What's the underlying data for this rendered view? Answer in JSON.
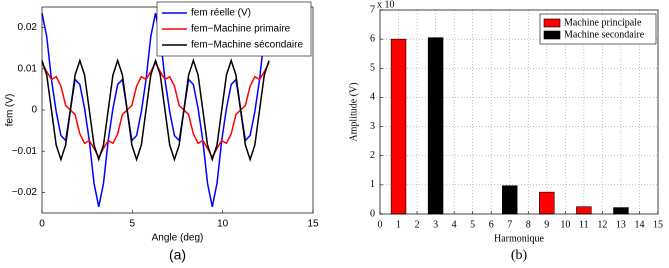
{
  "chart_data": [
    {
      "type": "line",
      "caption": "(a)",
      "xlabel": "Angle (deg)",
      "ylabel": "fem (V)",
      "xlim": [
        0,
        15
      ],
      "xticks": [
        0,
        5,
        10,
        15
      ],
      "ylim": [
        -0.025,
        0.025
      ],
      "yticks": [
        {
          "value": -0.02,
          "label": "−0.02"
        },
        {
          "value": -0.01,
          "label": "−0.01"
        },
        0,
        0.01,
        0.02
      ],
      "grid": false,
      "legend": "top-right",
      "x": [
        0,
        0.2618,
        0.5236,
        0.7854,
        1.0472,
        1.309,
        1.5708,
        1.8326,
        2.0944,
        2.3562,
        2.618,
        2.8798,
        3.1416,
        3.4034,
        3.6652,
        3.927,
        4.1888,
        4.4506,
        4.7124,
        4.9742,
        5.236,
        5.4978,
        5.7596,
        6.0214,
        6.2832,
        6.545,
        6.8068,
        7.0686,
        7.3304,
        7.5922,
        7.854,
        8.1158,
        8.3776,
        8.6394,
        8.9012,
        9.163,
        9.4248,
        9.6866,
        9.9484,
        10.2102,
        10.472,
        10.7338,
        10.9956,
        11.2574,
        11.5192,
        11.781,
        12.0428,
        12.3046,
        12.5664
      ],
      "series": [
        {
          "name": "fem réelle (V)",
          "color": "#0000ff",
          "values": [
            0.0235,
            0.0178,
            0.0074,
            -0.0004,
            -0.0062,
            -0.0074,
            0,
            0.0074,
            0.0062,
            0.0004,
            -0.0074,
            -0.0178,
            -0.0235,
            -0.0178,
            -0.0074,
            0.0004,
            0.0062,
            0.0074,
            0,
            -0.0074,
            -0.0062,
            -0.0004,
            0.0074,
            0.0178,
            0.0235,
            0.0178,
            0.0074,
            -0.0004,
            -0.0062,
            -0.0074,
            0,
            0.0074,
            0.0062,
            0.0004,
            -0.0074,
            -0.0178,
            -0.0235,
            -0.0178,
            -0.0074,
            0.0004,
            0.0062,
            0.0074,
            0,
            -0.0074,
            -0.0062,
            -0.0004,
            0.0074,
            0.0178,
            0.0235
          ]
        },
        {
          "name": "fem−Machine primaire",
          "color": "#ff0000",
          "values": [
            0.0115,
            0.0093,
            0.0074,
            0.0081,
            0.0058,
            0.0011,
            0,
            -0.0011,
            -0.0058,
            -0.0081,
            -0.0074,
            -0.0093,
            -0.0115,
            -0.0093,
            -0.0074,
            -0.0081,
            -0.0058,
            -0.0011,
            0,
            0.0011,
            0.0058,
            0.0081,
            0.0074,
            0.0093,
            0.0115,
            0.0093,
            0.0074,
            0.0081,
            0.0058,
            0.0011,
            0,
            -0.0011,
            -0.0058,
            -0.0081,
            -0.0074,
            -0.0093,
            -0.0115,
            -0.0093,
            -0.0074,
            -0.0081,
            -0.0058,
            -0.0011,
            0,
            0.0011,
            0.0058,
            0.0081,
            0.0074,
            0.0093,
            0.0115
          ]
        },
        {
          "name": "fem−Machine sécondaire",
          "color": "#000000",
          "values": [
            0.012,
            0.0085,
            0,
            -0.0085,
            -0.012,
            -0.0085,
            0,
            0.0085,
            0.012,
            0.0085,
            0,
            -0.0085,
            -0.012,
            -0.0085,
            0,
            0.0085,
            0.012,
            0.0085,
            0,
            -0.0085,
            -0.012,
            -0.0085,
            0,
            0.0085,
            0.012,
            0.0085,
            0,
            -0.0085,
            -0.012,
            -0.0085,
            0,
            0.0085,
            0.012,
            0.0085,
            0,
            -0.0085,
            -0.012,
            -0.0085,
            0,
            0.0085,
            0.012,
            0.0085,
            0,
            -0.0085,
            -0.012,
            -0.0085,
            0,
            0.0085,
            0.012
          ]
        }
      ]
    },
    {
      "type": "bar",
      "caption": "(b)",
      "xlabel": "Harmonique",
      "ylabel": "Amplitude (V)",
      "multiplier": "x 10",
      "xlim": [
        0,
        15
      ],
      "xticks": [
        0,
        1,
        2,
        3,
        4,
        5,
        6,
        7,
        8,
        9,
        10,
        11,
        12,
        13,
        14,
        15
      ],
      "ylim": [
        0,
        7
      ],
      "yticks": [
        0,
        1,
        2,
        3,
        4,
        5,
        6,
        7
      ],
      "grid": true,
      "legend": "top-right",
      "series": [
        {
          "name": "Machine principale",
          "color": "#ff0000",
          "x": [
            1,
            9,
            11
          ],
          "values": [
            6,
            0.75,
            0.25
          ]
        },
        {
          "name": "Machine secondaire",
          "color": "#000000",
          "x": [
            3,
            7,
            13
          ],
          "values": [
            6.05,
            0.97,
            0.22
          ]
        }
      ]
    }
  ]
}
